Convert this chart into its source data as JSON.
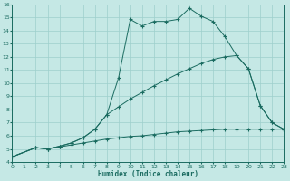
{
  "xlabel": "Humidex (Indice chaleur)",
  "bg_color": "#c5e8e5",
  "line_color": "#1a6b60",
  "grid_color": "#9ecfcc",
  "xlim": [
    0,
    23
  ],
  "ylim": [
    4,
    16
  ],
  "xticks": [
    0,
    1,
    2,
    3,
    4,
    5,
    6,
    7,
    8,
    9,
    10,
    11,
    12,
    13,
    14,
    15,
    16,
    17,
    18,
    19,
    20,
    21,
    22,
    23
  ],
  "yticks": [
    4,
    5,
    6,
    7,
    8,
    9,
    10,
    11,
    12,
    13,
    14,
    15,
    16
  ],
  "series1_x": [
    0,
    2,
    3,
    4,
    5,
    6,
    7,
    8,
    9,
    10,
    11,
    12,
    13,
    14,
    15,
    16,
    17,
    18,
    19,
    20,
    21,
    22,
    23
  ],
  "series1_y": [
    4.4,
    5.1,
    5.0,
    5.2,
    5.45,
    5.85,
    6.5,
    7.6,
    10.4,
    14.85,
    14.35,
    14.7,
    14.7,
    14.85,
    15.7,
    15.1,
    14.7,
    13.55,
    12.1,
    11.1,
    8.3,
    7.0,
    6.5
  ],
  "series2_x": [
    0,
    2,
    3,
    4,
    5,
    6,
    7,
    8,
    9,
    10,
    11,
    12,
    13,
    14,
    15,
    16,
    17,
    18,
    19,
    20,
    21,
    22,
    23
  ],
  "series2_y": [
    4.4,
    5.1,
    5.0,
    5.2,
    5.45,
    5.85,
    6.5,
    7.6,
    8.2,
    8.8,
    9.3,
    9.8,
    10.25,
    10.7,
    11.1,
    11.5,
    11.8,
    12.0,
    12.1,
    11.1,
    8.3,
    7.0,
    6.5
  ],
  "series3_x": [
    0,
    2,
    3,
    4,
    5,
    6,
    7,
    8,
    9,
    10,
    11,
    12,
    13,
    14,
    15,
    16,
    17,
    18,
    19,
    20,
    21,
    22,
    23
  ],
  "series3_y": [
    4.4,
    5.1,
    5.0,
    5.15,
    5.3,
    5.45,
    5.6,
    5.75,
    5.85,
    5.95,
    6.0,
    6.1,
    6.2,
    6.3,
    6.35,
    6.4,
    6.45,
    6.5,
    6.5,
    6.5,
    6.5,
    6.5,
    6.5
  ]
}
